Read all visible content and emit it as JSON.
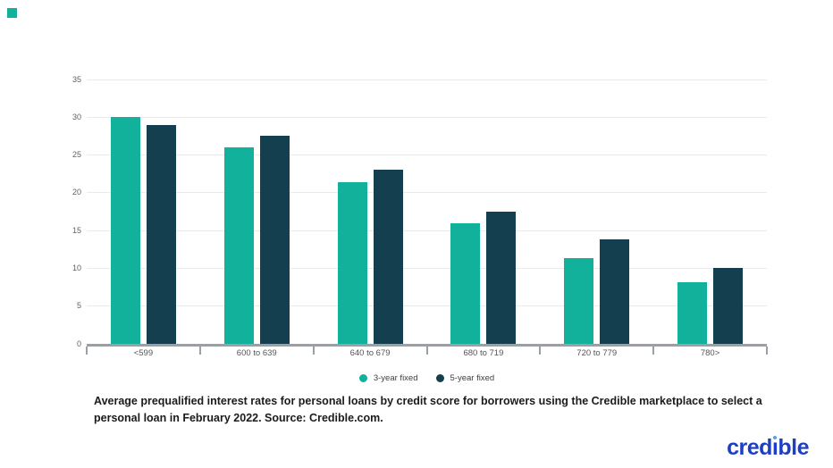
{
  "page": {
    "background": "#ffffff",
    "brand_square_color": "#12b19b"
  },
  "chart_data": {
    "type": "bar",
    "title": "",
    "xlabel": "",
    "ylabel": "",
    "categories": [
      "<599",
      "600 to 639",
      "640 to 679",
      "680 to 719",
      "720 to 779",
      "780>"
    ],
    "series": [
      {
        "name": "3-year fixed",
        "color": "#12b19b",
        "values": [
          30.0,
          26.0,
          21.4,
          16.0,
          11.3,
          8.2
        ]
      },
      {
        "name": "5-year fixed",
        "color": "#133f4e",
        "values": [
          29.0,
          27.5,
          23.0,
          17.5,
          13.8,
          10.1
        ]
      }
    ],
    "ylim": [
      0,
      35
    ],
    "yticks": [
      0,
      5,
      10,
      15,
      20,
      25,
      30,
      35
    ],
    "grid": true,
    "legend_position": "bottom",
    "gridline_color": "#e9eaec",
    "axis_color": "#9aa0a6"
  },
  "caption": {
    "text": "Average prequalified interest rates for personal loans by credit score for borrowers using the Credible marketplace to select a personal loan in February 2022. Source: Credible.com."
  },
  "logo": {
    "text": "credible",
    "color": "#1c3fc7",
    "i_dot_color": "#58a1e8"
  }
}
